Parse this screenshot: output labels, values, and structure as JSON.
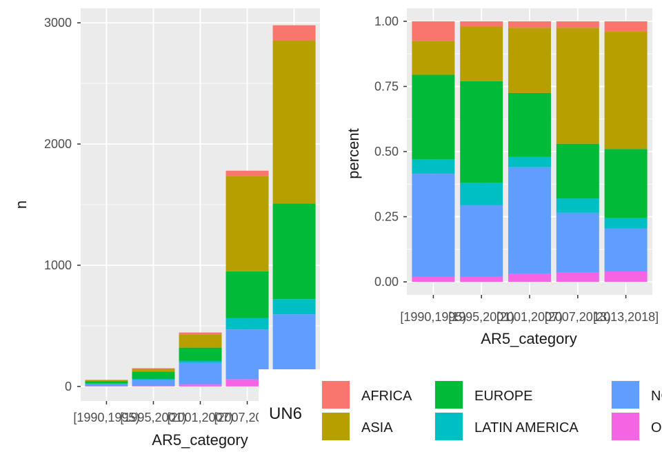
{
  "chart_data": [
    {
      "type": "bar",
      "stacked": true,
      "xlabel": "AR5_category",
      "ylabel": "n",
      "ylim": [
        -120,
        3120
      ],
      "yticks": [
        0,
        1000,
        2000,
        3000
      ],
      "categories": [
        "[1990,1995)",
        "[1995,2001)",
        "[2001,2007)",
        "[2007,2013)",
        "[2013,2018]"
      ],
      "series": [
        {
          "name": "OCEANIA",
          "color": "#F564E3",
          "values": [
            2,
            4,
            15,
            60,
            100
          ]
        },
        {
          "name": "NORTH AMERICA",
          "color": "#619CFF",
          "values": [
            18,
            48,
            180,
            410,
            495
          ]
        },
        {
          "name": "LATIN AMERICA",
          "color": "#00BFC4",
          "values": [
            4,
            10,
            15,
            95,
            125
          ]
        },
        {
          "name": "EUROPE",
          "color": "#00BA38",
          "values": [
            20,
            60,
            110,
            385,
            790
          ]
        },
        {
          "name": "ASIA",
          "color": "#B79F00",
          "values": [
            8,
            25,
            110,
            785,
            1345
          ]
        },
        {
          "name": "AFRICA",
          "color": "#F8766D",
          "values": [
            3,
            3,
            15,
            45,
            125
          ]
        }
      ]
    },
    {
      "type": "bar",
      "stacked": true,
      "xlabel": "AR5_category",
      "ylabel": "percent",
      "ylim": [
        -0.05,
        1.05
      ],
      "yticks": [
        "0.00",
        "0.25",
        "0.50",
        "0.75",
        "1.00"
      ],
      "categories": [
        "[1990,1995)",
        "[1995,2001)",
        "[2001,2007)",
        "[2007,2013)",
        "[2013,2018]"
      ],
      "series": [
        {
          "name": "OCEANIA",
          "color": "#F564E3",
          "values": [
            0.02,
            0.02,
            0.03,
            0.035,
            0.04
          ]
        },
        {
          "name": "NORTH AMERICA",
          "color": "#619CFF",
          "values": [
            0.395,
            0.275,
            0.41,
            0.23,
            0.165
          ]
        },
        {
          "name": "LATIN AMERICA",
          "color": "#00BFC4",
          "values": [
            0.055,
            0.085,
            0.04,
            0.055,
            0.04
          ]
        },
        {
          "name": "EUROPE",
          "color": "#00BA38",
          "values": [
            0.325,
            0.39,
            0.245,
            0.21,
            0.265
          ]
        },
        {
          "name": "ASIA",
          "color": "#B79F00",
          "values": [
            0.13,
            0.21,
            0.25,
            0.445,
            0.45
          ]
        },
        {
          "name": "AFRICA",
          "color": "#F8766D",
          "values": [
            0.075,
            0.02,
            0.025,
            0.025,
            0.04
          ]
        }
      ]
    }
  ],
  "legend": {
    "title": "UN6",
    "items": [
      {
        "label": "AFRICA",
        "color": "#F8766D"
      },
      {
        "label": "ASIA",
        "color": "#B79F00"
      },
      {
        "label": "EUROPE",
        "color": "#00BA38"
      },
      {
        "label": "LATIN AMERICA",
        "color": "#00BFC4"
      },
      {
        "label": "NORTH AMERICA",
        "color": "#619CFF"
      },
      {
        "label": "OCEANIA",
        "color": "#F564E3"
      }
    ]
  }
}
